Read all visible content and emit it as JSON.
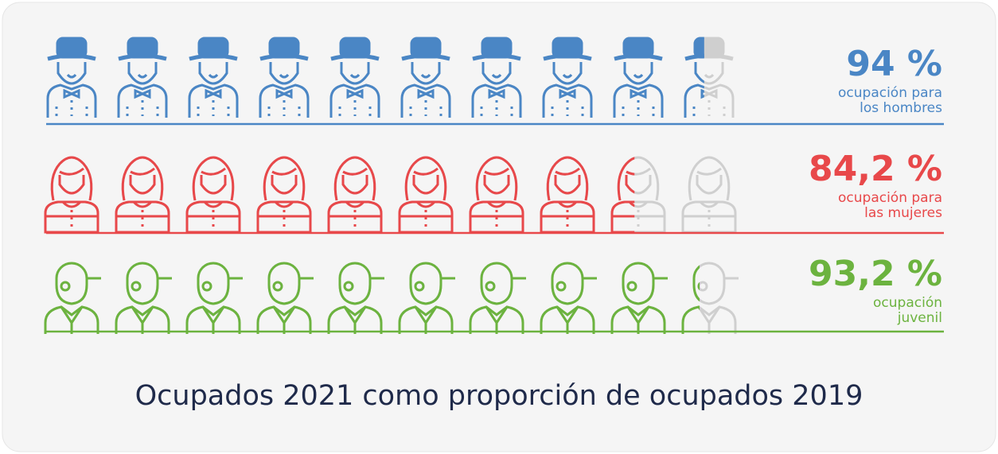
{
  "chart_data": {
    "type": "pictogram",
    "title": "Ocupados 2021 como proporción de ocupados 2019",
    "xlim": [
      0,
      100
    ],
    "series": [
      {
        "name": "ocupación para\nlos hombres",
        "color": "#4a86c5",
        "values": [
          94
        ],
        "value_labels": [
          "94 %"
        ]
      },
      {
        "name": "ocupación para\nlas mujeres",
        "color": "#e8484a",
        "values": [
          84.2
        ],
        "value_labels": [
          "84,2 %"
        ]
      },
      {
        "name": "ocupación\njuvenil",
        "color": "#6cb33f",
        "values": [
          93.2
        ],
        "value_labels": [
          "93,2 %"
        ]
      }
    ]
  }
}
